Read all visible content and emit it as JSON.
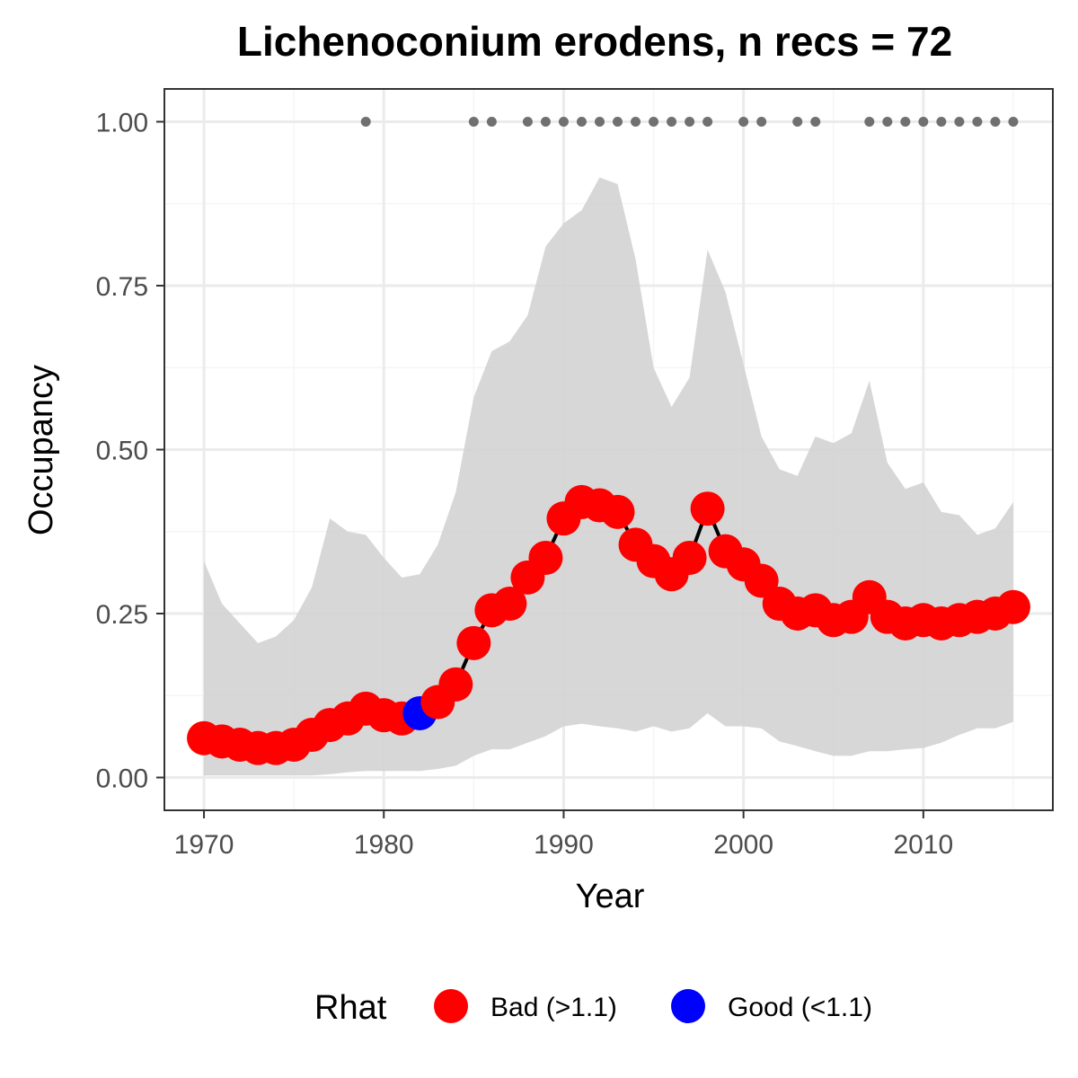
{
  "chart_data": {
    "type": "line",
    "title": "Lichenoconium erodens, n recs = 72",
    "xlabel": "Year",
    "ylabel": "Occupancy",
    "xlim": [
      1967.8,
      2017.2
    ],
    "ylim": [
      -0.05,
      1.05
    ],
    "x_ticks": [
      1970,
      1980,
      1990,
      2000,
      2010
    ],
    "x_tick_labels": [
      "1970",
      "1980",
      "1990",
      "2000",
      "2010"
    ],
    "y_ticks": [
      0,
      0.25,
      0.5,
      0.75,
      1.0
    ],
    "y_tick_labels": [
      "0.00",
      "0.25",
      "0.50",
      "0.75",
      "1.00"
    ],
    "grid": true,
    "x": [
      1970,
      1971,
      1972,
      1973,
      1974,
      1975,
      1976,
      1977,
      1978,
      1979,
      1980,
      1981,
      1982,
      1983,
      1984,
      1985,
      1986,
      1987,
      1988,
      1989,
      1990,
      1991,
      1992,
      1993,
      1994,
      1995,
      1996,
      1997,
      1998,
      1999,
      2000,
      2001,
      2002,
      2003,
      2004,
      2005,
      2006,
      2007,
      2008,
      2009,
      2010,
      2011,
      2012,
      2013,
      2014,
      2015
    ],
    "series": [
      {
        "values": [
          0.06,
          0.055,
          0.05,
          0.045,
          0.045,
          0.05,
          0.065,
          0.08,
          0.09,
          0.105,
          0.095,
          0.09,
          0.098,
          0.115,
          0.142,
          0.205,
          0.255,
          0.265,
          0.305,
          0.335,
          0.395,
          0.42,
          0.415,
          0.405,
          0.355,
          0.33,
          0.31,
          0.335,
          0.41,
          0.345,
          0.325,
          0.3,
          0.265,
          0.25,
          0.255,
          0.24,
          0.245,
          0.275,
          0.245,
          0.235,
          0.24,
          0.235,
          0.24,
          0.245,
          0.25,
          0.26
        ],
        "rhat": [
          "Bad",
          "Bad",
          "Bad",
          "Bad",
          "Bad",
          "Bad",
          "Bad",
          "Bad",
          "Bad",
          "Bad",
          "Bad",
          "Bad",
          "Good",
          "Bad",
          "Bad",
          "Bad",
          "Bad",
          "Bad",
          "Bad",
          "Bad",
          "Bad",
          "Bad",
          "Bad",
          "Bad",
          "Bad",
          "Bad",
          "Bad",
          "Bad",
          "Bad",
          "Bad",
          "Bad",
          "Bad",
          "Bad",
          "Bad",
          "Bad",
          "Bad",
          "Bad",
          "Bad",
          "Bad",
          "Bad",
          "Bad",
          "Bad",
          "Bad",
          "Bad",
          "Bad",
          "Bad"
        ],
        "lower": [
          0.003,
          0.003,
          0.003,
          0.003,
          0.003,
          0.003,
          0.003,
          0.005,
          0.008,
          0.01,
          0.01,
          0.01,
          0.01,
          0.013,
          0.018,
          0.033,
          0.043,
          0.043,
          0.053,
          0.063,
          0.078,
          0.082,
          0.078,
          0.075,
          0.07,
          0.078,
          0.07,
          0.075,
          0.098,
          0.078,
          0.078,
          0.075,
          0.055,
          0.048,
          0.04,
          0.033,
          0.033,
          0.04,
          0.04,
          0.043,
          0.045,
          0.053,
          0.065,
          0.075,
          0.075,
          0.085
        ],
        "upper": [
          0.33,
          0.265,
          0.235,
          0.205,
          0.215,
          0.24,
          0.29,
          0.395,
          0.375,
          0.37,
          0.335,
          0.305,
          0.31,
          0.355,
          0.435,
          0.58,
          0.65,
          0.665,
          0.705,
          0.81,
          0.845,
          0.865,
          0.915,
          0.905,
          0.79,
          0.625,
          0.565,
          0.61,
          0.805,
          0.74,
          0.63,
          0.52,
          0.47,
          0.46,
          0.52,
          0.51,
          0.525,
          0.605,
          0.48,
          0.44,
          0.45,
          0.405,
          0.4,
          0.37,
          0.38,
          0.42
        ]
      }
    ],
    "records_y": 1.0,
    "record_years": [
      1979,
      1985,
      1986,
      1988,
      1989,
      1990,
      1991,
      1992,
      1993,
      1994,
      1995,
      1996,
      1997,
      1998,
      2000,
      2001,
      2003,
      2004,
      2007,
      2008,
      2009,
      2010,
      2011,
      2012,
      2013,
      2014,
      2015
    ],
    "legend": {
      "title": "Rhat",
      "placement": "bottom",
      "items": [
        {
          "key": "Bad",
          "label": "Bad (>1.1)",
          "color": "#ff0000"
        },
        {
          "key": "Good",
          "label": "Good (<1.1)",
          "color": "#0000ff"
        }
      ]
    },
    "colors": {
      "ribbon": "#d3d3d3",
      "line": "#000000",
      "record_points": "#707070",
      "grid_major": "#ebebeb",
      "grid_minor": "#f5f5f5",
      "panel_border": "#333333"
    }
  }
}
